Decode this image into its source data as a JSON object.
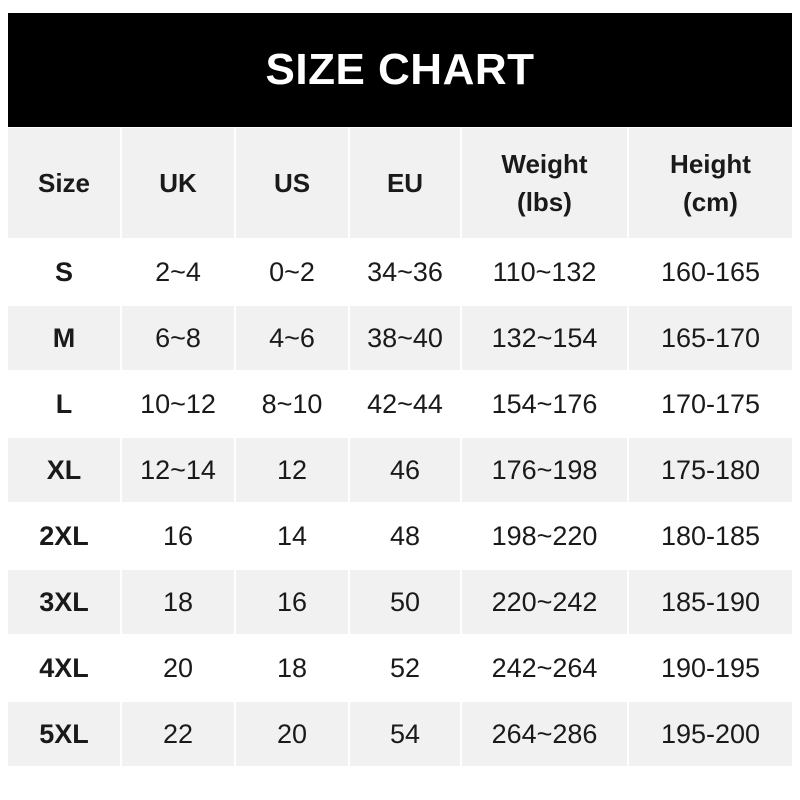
{
  "title": "SIZE CHART",
  "headers": [
    {
      "line1": "Size",
      "line2": ""
    },
    {
      "line1": "UK",
      "line2": ""
    },
    {
      "line1": "US",
      "line2": ""
    },
    {
      "line1": "EU",
      "line2": ""
    },
    {
      "line1": "Weight",
      "line2": "(lbs)"
    },
    {
      "line1": "Height",
      "line2": "(cm)"
    }
  ],
  "rows": [
    [
      "S",
      "2~4",
      "0~2",
      "34~36",
      "110~132",
      "160-165"
    ],
    [
      "M",
      "6~8",
      "4~6",
      "38~40",
      "132~154",
      "165-170"
    ],
    [
      "L",
      "10~12",
      "8~10",
      "42~44",
      "154~176",
      "170-175"
    ],
    [
      "XL",
      "12~14",
      "12",
      "46",
      "176~198",
      "175-180"
    ],
    [
      "2XL",
      "16",
      "14",
      "48",
      "198~220",
      "180-185"
    ],
    [
      "3XL",
      "18",
      "16",
      "50",
      "220~242",
      "185-190"
    ],
    [
      "4XL",
      "20",
      "18",
      "52",
      "242~264",
      "190-195"
    ],
    [
      "5XL",
      "22",
      "20",
      "54",
      "264~286",
      "195-200"
    ]
  ],
  "colors": {
    "header_bg": "#000000",
    "stripe": "#f1f1f1",
    "text": "#1a1a1a"
  }
}
